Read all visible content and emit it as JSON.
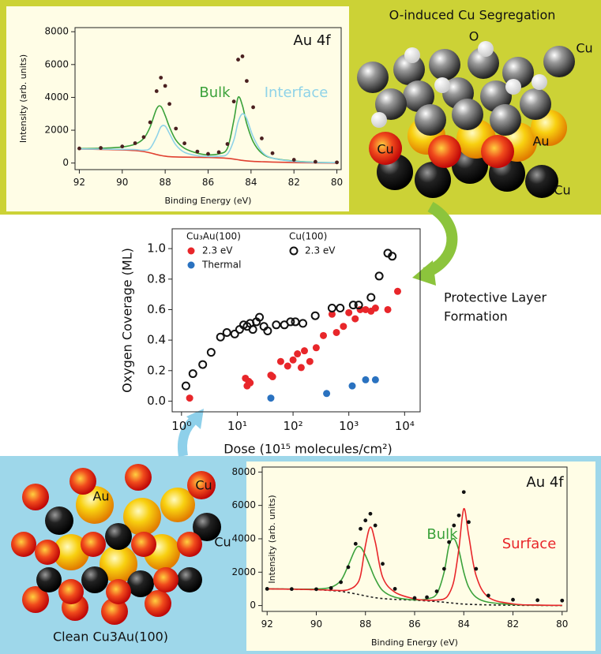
{
  "chart_data": [
    {
      "type": "line",
      "annotation": "Au 4f",
      "x_label": "Binding Energy (eV)",
      "y_label": "Intensity (arb. units)",
      "x": [
        92,
        91,
        90,
        89.4,
        89,
        88.7,
        88.4,
        88.2,
        88,
        87.8,
        87.5,
        87.1,
        86.5,
        86,
        85.5,
        85.1,
        84.8,
        84.6,
        84.4,
        84.2,
        83.9,
        83.5,
        83,
        82,
        81,
        80
      ],
      "series": [
        {
          "color": "#e04030",
          "style": "line",
          "values": [
            850,
            830,
            800,
            760,
            700,
            620,
            520,
            460,
            420,
            390,
            370,
            360,
            350,
            340,
            320,
            290,
            240,
            200,
            160,
            130,
            100,
            80,
            60,
            30,
            10,
            0
          ]
        },
        {
          "name": "Bulk",
          "color": "#3aa13a",
          "style": "line",
          "values": [
            880,
            900,
            980,
            1150,
            1500,
            2200,
            3300,
            3450,
            2900,
            2200,
            1400,
            900,
            600,
            500,
            560,
            900,
            2600,
            4000,
            3500,
            2400,
            1300,
            600,
            300,
            120,
            50,
            20
          ]
        },
        {
          "name": "Interface",
          "color": "#8fd3e8",
          "style": "line",
          "values": [
            860,
            850,
            830,
            820,
            780,
            900,
            1600,
            2200,
            2250,
            1800,
            1100,
            650,
            450,
            400,
            420,
            550,
            1400,
            2500,
            3000,
            2700,
            1600,
            700,
            300,
            100,
            40,
            20
          ]
        },
        {
          "color": "#4a2020",
          "style": "dots",
          "values": [
            890,
            920,
            1010,
            1210,
            1580,
            2480,
            4380,
            5200,
            4700,
            3600,
            2100,
            1200,
            700,
            560,
            660,
            1160,
            3750,
            6300,
            6500,
            5000,
            3400,
            1500,
            600,
            200,
            80,
            40
          ]
        }
      ],
      "xlim": [
        92.2,
        79.8
      ],
      "xticks": [
        92,
        90,
        88,
        86,
        84,
        82,
        80
      ],
      "ylim": [
        -400,
        8250
      ],
      "yticks": [
        0,
        2000,
        4000,
        6000,
        8000
      ]
    },
    {
      "type": "scatter",
      "x_label": "Dose (10¹⁵ molecules/cm²)",
      "y_label": "Oxygen Coverage (ML)",
      "log_x": true,
      "xlim": [
        0.68,
        19000
      ],
      "xticks": [
        {
          "value": 1,
          "label": "10⁰"
        },
        {
          "value": 10,
          "label": "10¹"
        },
        {
          "value": 100,
          "label": "10²"
        },
        {
          "value": 1000,
          "label": "10³"
        },
        {
          "value": 10000,
          "label": "10⁴"
        }
      ],
      "ylim": [
        -0.07,
        1.13
      ],
      "yticks": [
        {
          "value": 0,
          "label": "0.0"
        },
        0.2,
        0.4,
        0.6,
        0.8,
        {
          "value": 1,
          "label": "1.0"
        }
      ],
      "groups": [
        {
          "name": "Cu₃Au(100)",
          "series": [
            {
              "name": "2.3 eV",
              "color": "#e8262a",
              "marker": "filled",
              "x": [
                1.4,
                14,
                15,
                16,
                17,
                40,
                43,
                60,
                80,
                100,
                120,
                140,
                160,
                200,
                260,
                350,
                500,
                600,
                800,
                1000,
                1300,
                1600,
                2000,
                2500,
                3000,
                5000,
                7500
              ],
              "values": [
                0.02,
                0.15,
                0.1,
                0.13,
                0.12,
                0.17,
                0.16,
                0.26,
                0.23,
                0.27,
                0.31,
                0.22,
                0.33,
                0.26,
                0.35,
                0.43,
                0.57,
                0.45,
                0.49,
                0.58,
                0.54,
                0.6,
                0.6,
                0.59,
                0.61,
                0.6,
                0.72
              ]
            },
            {
              "name": "Thermal",
              "color": "#2a72c0",
              "marker": "filled",
              "x": [
                40,
                400,
                1150,
                2000,
                3000
              ],
              "values": [
                0.02,
                0.05,
                0.1,
                0.14,
                0.14
              ]
            }
          ]
        },
        {
          "name": "Cu(100)",
          "series": [
            {
              "name": "2.3 eV",
              "color": "#111111",
              "marker": "open",
              "x": [
                1.2,
                1.6,
                2.4,
                3.4,
                5,
                6.5,
                9,
                11,
                13,
                15,
                17,
                19,
                22,
                25,
                30,
                35,
                50,
                70,
                90,
                110,
                150,
                250,
                500,
                700,
                1200,
                1500,
                2500,
                3500,
                5000,
                6000
              ],
              "values": [
                0.1,
                0.18,
                0.24,
                0.32,
                0.42,
                0.45,
                0.44,
                0.47,
                0.5,
                0.49,
                0.51,
                0.47,
                0.52,
                0.55,
                0.49,
                0.46,
                0.5,
                0.5,
                0.52,
                0.52,
                0.51,
                0.56,
                0.61,
                0.61,
                0.63,
                0.63,
                0.68,
                0.82,
                0.97,
                0.95
              ]
            }
          ]
        }
      ]
    },
    {
      "type": "line",
      "annotation": "Au 4f",
      "x_label": "Binding Energy (eV)",
      "y_label": "Intensity (arb. units)",
      "x": [
        92,
        91,
        90,
        89.4,
        89,
        88.7,
        88.4,
        88.2,
        88,
        87.8,
        87.6,
        87.3,
        86.8,
        86,
        85.5,
        85.1,
        84.8,
        84.6,
        84.4,
        84.2,
        84,
        83.8,
        83.5,
        83,
        82,
        81,
        80
      ],
      "series": [
        {
          "color": "#222222",
          "style": "dashed",
          "values": [
            1000,
            980,
            950,
            900,
            850,
            780,
            700,
            640,
            580,
            520,
            470,
            420,
            370,
            320,
            280,
            240,
            200,
            170,
            140,
            110,
            90,
            75,
            60,
            40,
            20,
            10,
            0
          ]
        },
        {
          "name": "Bulk",
          "color": "#3aa13a",
          "style": "line",
          "values": [
            1000,
            990,
            990,
            1100,
            1500,
            2400,
            3400,
            3500,
            3000,
            2300,
            1600,
            900,
            500,
            340,
            400,
            700,
            2000,
            3600,
            4000,
            3300,
            2000,
            1100,
            500,
            200,
            60,
            20,
            10
          ]
        },
        {
          "name": "Surface",
          "color": "#e8262a",
          "style": "line",
          "values": [
            1000,
            980,
            950,
            920,
            900,
            950,
            1200,
            1800,
            3600,
            4700,
            3800,
            1700,
            800,
            400,
            320,
            330,
            400,
            700,
            1500,
            3400,
            5800,
            4200,
            1800,
            500,
            100,
            30,
            10
          ]
        },
        {
          "color": "#111111",
          "style": "dots",
          "values": [
            1000,
            990,
            980,
            1050,
            1400,
            2300,
            3700,
            4600,
            5100,
            5500,
            4800,
            2500,
            1000,
            450,
            500,
            850,
            2200,
            3800,
            4800,
            5400,
            6800,
            5000,
            2200,
            600,
            350,
            320,
            300
          ]
        }
      ],
      "xlim": [
        92.2,
        79.8
      ],
      "xticks": [
        92,
        90,
        88,
        86,
        84,
        82,
        80
      ],
      "ylim": [
        -350,
        8300
      ],
      "yticks": [
        0,
        2000,
        4000,
        6000,
        8000
      ]
    }
  ],
  "illustrations": {
    "top": {
      "title": "O-induced Cu Segregation",
      "labels": [
        "O",
        "Cu",
        "Cu",
        "Au",
        "Cu"
      ]
    },
    "middle": {
      "caption": [
        "Protective Layer",
        "Formation"
      ]
    },
    "bottom": {
      "labels": [
        "Au",
        "Cu",
        "Cu"
      ],
      "caption": "Clean Cu3Au(100)"
    }
  }
}
